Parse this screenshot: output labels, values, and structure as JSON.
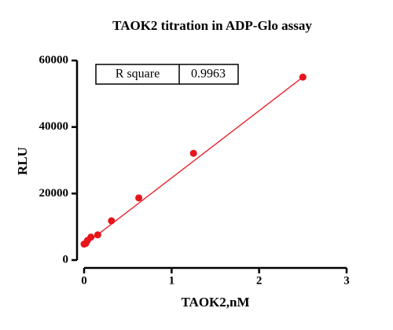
{
  "chart_data": {
    "type": "scatter",
    "title": "TAOK2 titration in ADP-Glo assay",
    "x_label": "TAOK2,nM",
    "y_label": "RLU",
    "x": [
      0,
      0.0195,
      0.039,
      0.078,
      0.156,
      0.3125,
      0.625,
      1.25,
      2.5
    ],
    "values": [
      4800,
      5000,
      5900,
      6900,
      7600,
      11800,
      18700,
      32100,
      55000
    ],
    "color": "#e8141b",
    "fit_line": {
      "x": [
        0,
        2.5
      ],
      "values": [
        4500,
        55000
      ],
      "color": "#e8141b"
    },
    "annotation": {
      "label": "R square",
      "value": 0.9963
    },
    "xlim": [
      0,
      3
    ],
    "xticks": [
      0,
      1,
      2,
      3
    ],
    "ylim": [
      0,
      60000
    ],
    "yticks": [
      0,
      20000,
      40000,
      60000
    ],
    "grid": false
  }
}
